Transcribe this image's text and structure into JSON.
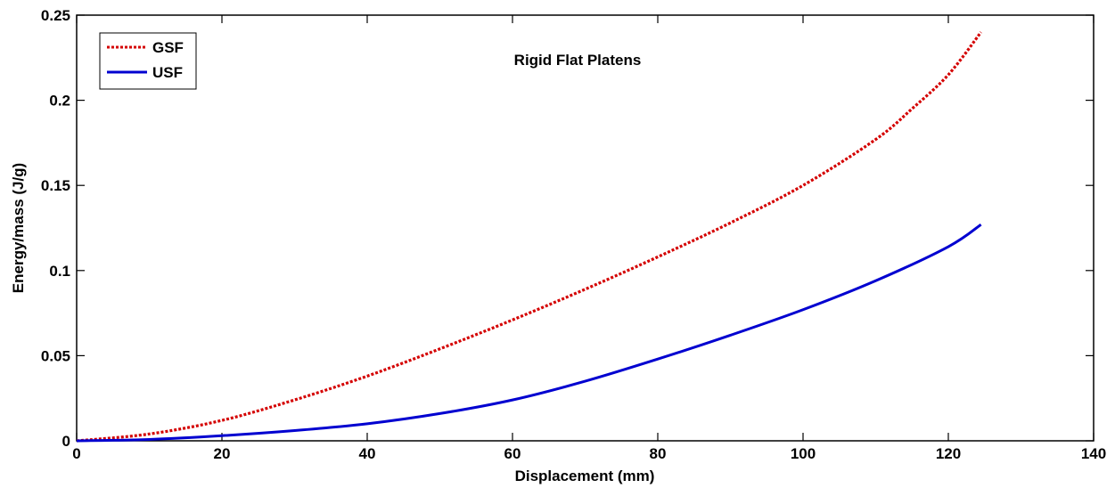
{
  "chart_data": {
    "type": "line",
    "title": "",
    "annotation": "Rigid Flat Platens",
    "xlabel": "Displacement (mm)",
    "ylabel": "Energy/mass (J/g)",
    "xlim": [
      0,
      140
    ],
    "ylim": [
      0,
      0.25
    ],
    "xticks": [
      0,
      20,
      40,
      60,
      80,
      100,
      120,
      140
    ],
    "xtick_labels": [
      "0",
      "20",
      "40",
      "60",
      "80",
      "100",
      "120",
      "140"
    ],
    "yticks": [
      0,
      0.05,
      0.1,
      0.15,
      0.2,
      0.25
    ],
    "ytick_labels": [
      "0",
      "0.05",
      "0.1",
      "0.15",
      "0.2",
      "0.25"
    ],
    "grid": false,
    "legend_position": "top-left",
    "series": [
      {
        "name": "GSF",
        "color": "#d40000",
        "style": "dotted",
        "x": [
          0,
          10,
          20,
          30,
          40,
          50,
          60,
          70,
          80,
          90,
          100,
          110,
          115,
          120,
          124.5
        ],
        "y": [
          0,
          0.004,
          0.012,
          0.024,
          0.038,
          0.054,
          0.071,
          0.089,
          0.108,
          0.128,
          0.15,
          0.177,
          0.195,
          0.215,
          0.24
        ]
      },
      {
        "name": "USF",
        "color": "#0000d0",
        "style": "solid",
        "x": [
          0,
          10,
          20,
          30,
          40,
          50,
          60,
          70,
          80,
          90,
          100,
          110,
          120,
          124.5
        ],
        "y": [
          0,
          0.0008,
          0.003,
          0.006,
          0.01,
          0.016,
          0.024,
          0.035,
          0.048,
          0.062,
          0.077,
          0.094,
          0.114,
          0.127
        ]
      }
    ]
  }
}
